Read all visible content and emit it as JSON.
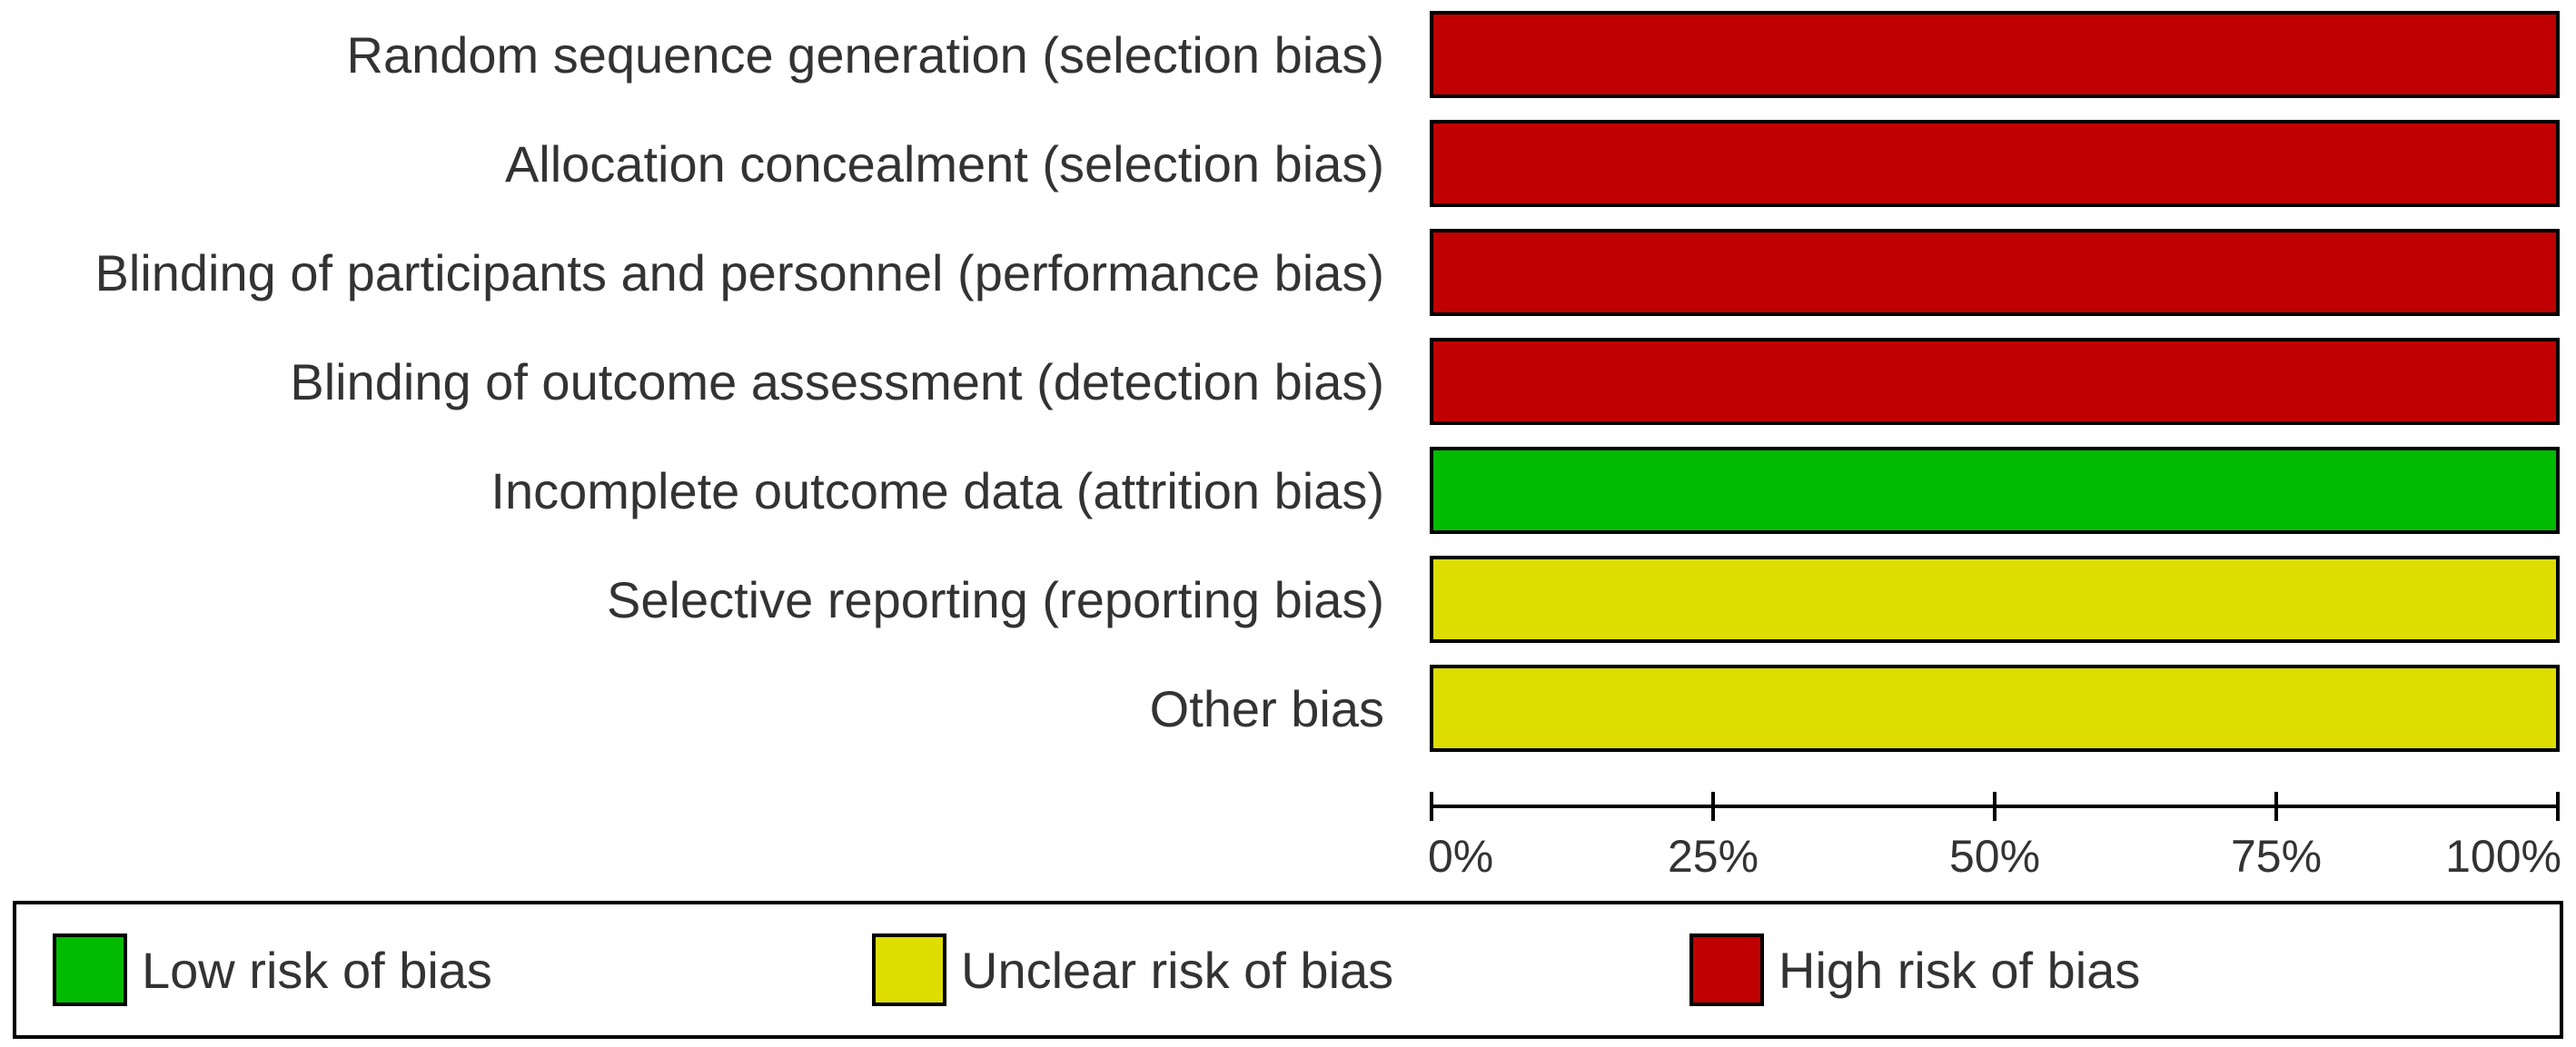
{
  "chart_data": {
    "type": "bar",
    "orientation": "horizontal",
    "stacked": true,
    "categories": [
      "Random sequence generation (selection bias)",
      "Allocation concealment (selection bias)",
      "Blinding of participants and personnel (performance bias)",
      "Blinding of outcome assessment (detection bias)",
      "Incomplete outcome data (attrition bias)",
      "Selective reporting (reporting bias)",
      "Other bias"
    ],
    "series": [
      {
        "name": "Low risk of bias",
        "color": "#00bb00",
        "values": [
          0,
          0,
          0,
          0,
          100,
          0,
          0
        ]
      },
      {
        "name": "Unclear risk of bias",
        "color": "#dddd00",
        "values": [
          0,
          0,
          0,
          0,
          0,
          100,
          100
        ]
      },
      {
        "name": "High risk of bias",
        "color": "#c00000",
        "values": [
          100,
          100,
          100,
          100,
          0,
          0,
          0
        ]
      }
    ],
    "x_ticks": [
      "0%",
      "25%",
      "50%",
      "75%",
      "100%"
    ],
    "xlim": [
      0,
      100
    ],
    "legend_position": "bottom",
    "grid": false
  }
}
